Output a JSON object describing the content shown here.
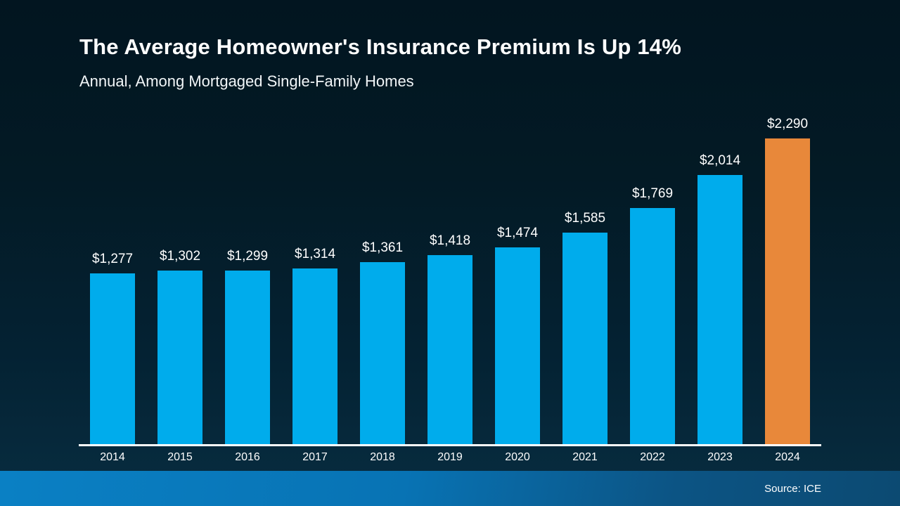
{
  "header": {
    "title": "The Average Homeowner's Insurance Premium Is Up 14%",
    "subtitle": "Annual, Among Mortgaged Single-Family Homes"
  },
  "footer": {
    "source_label": "Source: ICE"
  },
  "colors": {
    "bar_default": "#00ACEC",
    "bar_highlight": "#E8883A",
    "axis": "#ffffff",
    "background_top": "#021520",
    "background_bottom": "#072b3e",
    "footer_left": "#0a80c4",
    "footer_right": "#0c4a72",
    "text": "#ffffff"
  },
  "chart_data": {
    "type": "bar",
    "title": "The Average Homeowner's Insurance Premium Is Up 14%",
    "subtitle": "Annual, Among Mortgaged Single-Family Homes",
    "categories": [
      "2014",
      "2015",
      "2016",
      "2017",
      "2018",
      "2019",
      "2020",
      "2021",
      "2022",
      "2023",
      "2024"
    ],
    "values": [
      1277,
      1302,
      1299,
      1314,
      1361,
      1418,
      1474,
      1585,
      1769,
      2014,
      2290
    ],
    "value_labels": [
      "$1,277",
      "$1,302",
      "$1,299",
      "$1,314",
      "$1,361",
      "$1,418",
      "$1,474",
      "$1,585",
      "$1,769",
      "$2,014",
      "$2,290"
    ],
    "highlighted_category": "2024",
    "xlabel": "",
    "ylabel": "",
    "ylim": [
      0,
      2290
    ],
    "grid": false,
    "legend": false,
    "data_labels_position": "above-bars",
    "source": "Source: ICE"
  }
}
